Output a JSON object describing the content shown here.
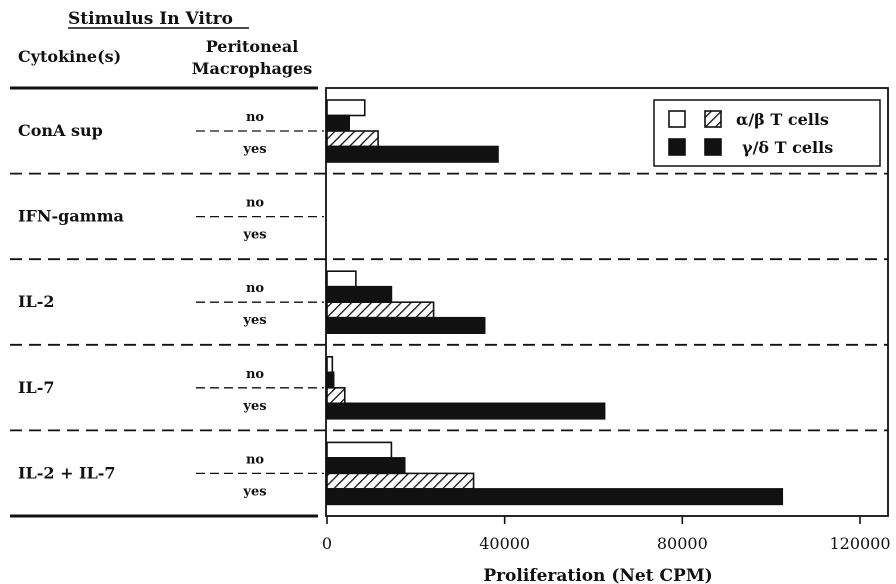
{
  "header": {
    "group_title": "Stimulus In Vitro",
    "col_cytokine": "Cytokine(s)",
    "col_macrophages_line1": "Peritoneal",
    "col_macrophages_line2": "Macrophages"
  },
  "legend": {
    "alpha_beta": "α/β T cells",
    "gamma_delta": "γ/δ T cells",
    "placement": "top-right"
  },
  "colors": {
    "ink": "#111111",
    "background": "#ffffff"
  },
  "chart_data": {
    "type": "bar",
    "orientation": "horizontal",
    "xlabel": "Proliferation (Net CPM)",
    "xlim": [
      0,
      120000
    ],
    "xticks": [
      "0",
      "40000",
      "80000",
      "120000"
    ],
    "tick_values": [
      0,
      40000,
      80000,
      120000
    ],
    "grid": false,
    "groups": [
      {
        "label": "ConA sup",
        "rows": [
          {
            "macrophages": "no",
            "series": "alpha/beta T cells",
            "fill": "open",
            "value": 8500
          },
          {
            "macrophages": "no",
            "series": "gamma/delta T cells",
            "fill": "solid",
            "value": 5000
          },
          {
            "macrophages": "yes",
            "series": "alpha/beta T cells",
            "fill": "hatched",
            "value": 11500
          },
          {
            "macrophages": "yes",
            "series": "gamma/delta T cells",
            "fill": "solid",
            "value": 38500
          }
        ]
      },
      {
        "label": "IFN-gamma",
        "rows": [
          {
            "macrophages": "no",
            "series": "alpha/beta T cells",
            "fill": "open",
            "value": 0
          },
          {
            "macrophages": "no",
            "series": "gamma/delta T cells",
            "fill": "solid",
            "value": 0
          },
          {
            "macrophages": "yes",
            "series": "alpha/beta T cells",
            "fill": "hatched",
            "value": 0
          },
          {
            "macrophages": "yes",
            "series": "gamma/delta T cells",
            "fill": "solid",
            "value": 0
          }
        ]
      },
      {
        "label": "IL-2",
        "rows": [
          {
            "macrophages": "no",
            "series": "alpha/beta T cells",
            "fill": "open",
            "value": 6500
          },
          {
            "macrophages": "no",
            "series": "gamma/delta T cells",
            "fill": "solid",
            "value": 14500
          },
          {
            "macrophages": "yes",
            "series": "alpha/beta T cells",
            "fill": "hatched",
            "value": 24000
          },
          {
            "macrophages": "yes",
            "series": "gamma/delta T cells",
            "fill": "solid",
            "value": 35500
          }
        ]
      },
      {
        "label": "IL-7",
        "rows": [
          {
            "macrophages": "no",
            "series": "alpha/beta T cells",
            "fill": "open",
            "value": 1200
          },
          {
            "macrophages": "no",
            "series": "gamma/delta T cells",
            "fill": "solid",
            "value": 1500
          },
          {
            "macrophages": "yes",
            "series": "alpha/beta T cells",
            "fill": "hatched",
            "value": 4000
          },
          {
            "macrophages": "yes",
            "series": "gamma/delta T cells",
            "fill": "solid",
            "value": 62500
          }
        ]
      },
      {
        "label": "IL-2 + IL-7",
        "rows": [
          {
            "macrophages": "no",
            "series": "alpha/beta T cells",
            "fill": "open",
            "value": 14500
          },
          {
            "macrophages": "no",
            "series": "gamma/delta T cells",
            "fill": "solid",
            "value": 17500
          },
          {
            "macrophages": "yes",
            "series": "alpha/beta T cells",
            "fill": "hatched",
            "value": 33000
          },
          {
            "macrophages": "yes",
            "series": "gamma/delta T cells",
            "fill": "solid",
            "value": 102500
          }
        ]
      }
    ]
  }
}
